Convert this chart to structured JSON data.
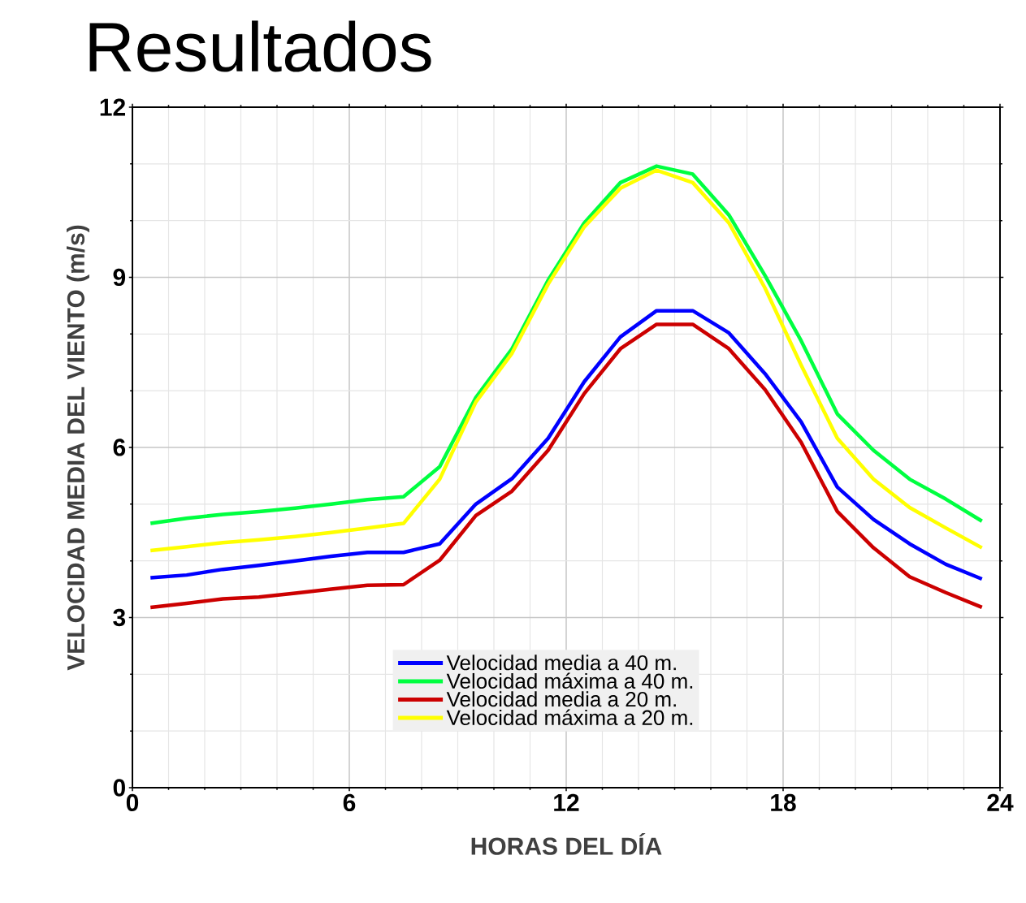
{
  "chart_data": {
    "type": "line",
    "title": "Resultados",
    "xlabel": "HORAS DEL DÍA",
    "ylabel": "VELOCIDAD MEDIA DEL VIENTO (m/s)",
    "x": [
      0.5,
      1.5,
      2.5,
      3.5,
      4.5,
      5.5,
      6.5,
      7.5,
      8.5,
      9.5,
      10.5,
      11.5,
      12.5,
      13.5,
      14.5,
      15.5,
      16.5,
      17.5,
      18.5,
      19.5,
      20.5,
      21.5,
      22.5,
      23.5
    ],
    "series": [
      {
        "name": "Velocidad media a 40 m.",
        "color": "#0000ff",
        "values": [
          3.7,
          3.75,
          3.85,
          3.92,
          4.0,
          4.08,
          4.15,
          4.15,
          4.3,
          5.0,
          5.45,
          6.16,
          7.16,
          7.95,
          8.41,
          8.41,
          8.02,
          7.3,
          6.45,
          5.3,
          4.73,
          4.3,
          3.94,
          3.68
        ]
      },
      {
        "name": "Velocidad máxima a 40 m.",
        "color": "#00ff40",
        "values": [
          4.66,
          4.75,
          4.82,
          4.87,
          4.93,
          5.0,
          5.08,
          5.13,
          5.66,
          6.88,
          7.74,
          8.95,
          9.96,
          10.67,
          10.96,
          10.82,
          10.1,
          9.03,
          7.88,
          6.59,
          5.95,
          5.44,
          5.09,
          4.7
        ]
      },
      {
        "name": "Velocidad media a 20 m.",
        "color": "#cc0000",
        "values": [
          3.18,
          3.25,
          3.33,
          3.36,
          3.43,
          3.5,
          3.57,
          3.58,
          4.01,
          4.8,
          5.23,
          5.95,
          6.95,
          7.74,
          8.17,
          8.17,
          7.74,
          7.02,
          6.09,
          4.87,
          4.23,
          3.72,
          3.44,
          3.18
        ]
      },
      {
        "name": "Velocidad máxima a 20 m.",
        "color": "#ffff00",
        "values": [
          4.18,
          4.25,
          4.32,
          4.37,
          4.43,
          4.5,
          4.58,
          4.66,
          5.44,
          6.8,
          7.66,
          8.88,
          9.89,
          10.57,
          10.89,
          10.67,
          9.96,
          8.81,
          7.45,
          6.16,
          5.44,
          4.94,
          4.58,
          4.23
        ]
      }
    ],
    "xlim": [
      0,
      24
    ],
    "xticks": [
      0,
      6,
      12,
      18,
      24
    ],
    "ylim": [
      0,
      12
    ],
    "yticks": [
      0,
      3,
      6,
      9,
      12
    ],
    "grid": true,
    "legend": "bottom",
    "marker": "none",
    "line_style": "solid"
  }
}
